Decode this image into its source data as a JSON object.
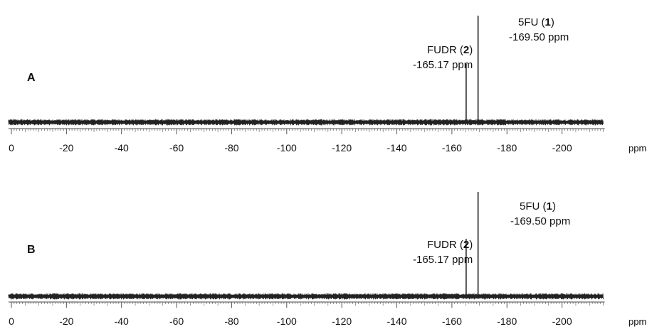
{
  "chart_data": [
    {
      "type": "line",
      "panel_label": "A",
      "xlabel": "ppm",
      "xlim": [
        0,
        -215
      ],
      "xticks": [
        "0",
        "-20",
        "-40",
        "-60",
        "-80",
        "-100",
        "-120",
        "-140",
        "-160",
        "-180",
        "-200"
      ],
      "series": [
        {
          "peaks": [
            {
              "x": -165.17,
              "height": 0.55,
              "name": "FUDR",
              "compound": "2",
              "shift_text": "-165.17 ppm"
            },
            {
              "x": -169.5,
              "height": 1.0,
              "name": "5FU",
              "compound": "1",
              "shift_text": "-169.50 ppm"
            }
          ]
        }
      ]
    },
    {
      "type": "line",
      "panel_label": "B",
      "xlabel": "ppm",
      "xlim": [
        0,
        -215
      ],
      "xticks": [
        "0",
        "-20",
        "-40",
        "-60",
        "-80",
        "-100",
        "-120",
        "-140",
        "-160",
        "-180",
        "-200"
      ],
      "series": [
        {
          "peaks": [
            {
              "x": -165.17,
              "height": 0.55,
              "name": "FUDR",
              "compound": "2",
              "shift_text": "-165.17 ppm"
            },
            {
              "x": -169.5,
              "height": 1.0,
              "name": "5FU",
              "compound": "1",
              "shift_text": "-169.50 ppm"
            }
          ]
        }
      ]
    }
  ]
}
